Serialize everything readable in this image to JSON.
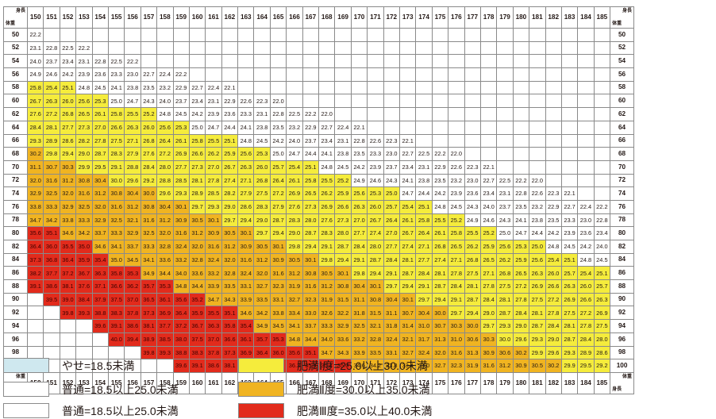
{
  "chart_data": {
    "type": "table",
    "corner_top": [
      "身長",
      "体重"
    ],
    "corner_bottom": [
      "体重",
      "身長"
    ],
    "heights_cm": [
      150,
      151,
      152,
      153,
      154,
      155,
      156,
      157,
      158,
      159,
      160,
      161,
      162,
      163,
      164,
      165,
      166,
      167,
      168,
      169,
      170,
      171,
      172,
      173,
      174,
      175,
      176,
      177,
      178,
      179,
      180,
      181,
      182,
      183,
      184,
      185
    ],
    "weights_kg": [
      50,
      52,
      54,
      56,
      58,
      60,
      62,
      64,
      66,
      68,
      70,
      72,
      74,
      76,
      78,
      80,
      82,
      84,
      86,
      88,
      90,
      92,
      94,
      96,
      98,
      100
    ],
    "cell_min_bmi": 22.0,
    "cell_max_bmi": 40.0
  },
  "legend": [
    {
      "label": "やせ=18.5未満",
      "color": "#cfe8ef"
    },
    {
      "label": "普通=18.5以上25.0未満",
      "color": "#ffffff"
    },
    {
      "label": "普通=18.5以上25.0未満",
      "color": "#ffffff"
    },
    {
      "label": "肥満Ⅰ度=25.0以上30.0未満",
      "color": "#f5ec3c"
    },
    {
      "label": "肥満Ⅱ度=30.0以上35.0未満",
      "color": "#f0b421"
    },
    {
      "label": "肥満Ⅲ度=35.0以上40.0未満",
      "color": "#e22b1c"
    }
  ]
}
